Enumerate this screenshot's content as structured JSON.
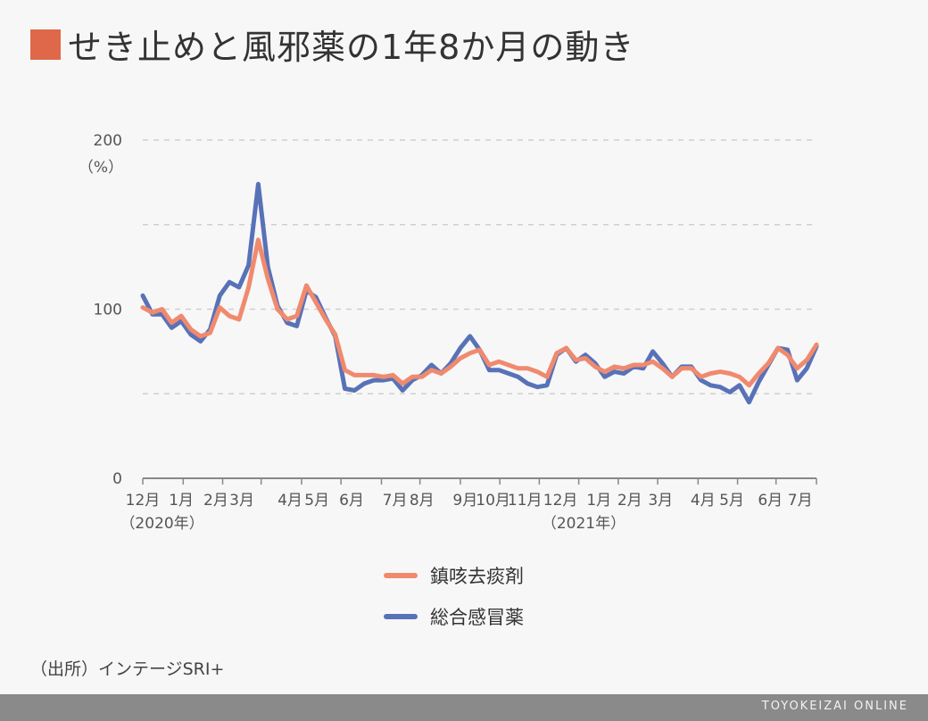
{
  "header": {
    "title": "せき止めと風邪薬の1年8か月の動き",
    "accent_color": "#e0684a"
  },
  "chart_data": {
    "type": "line",
    "yunit": "（%）",
    "ylim": [
      0,
      200
    ],
    "yticks": [
      0,
      100,
      200
    ],
    "ygrid": [
      50,
      100,
      150,
      200
    ],
    "grid": true,
    "x_count": 71,
    "month_labels": [
      {
        "label": "12月",
        "x": 0
      },
      {
        "label": "1月",
        "x": 4
      },
      {
        "label": "2月",
        "x": 7.6
      },
      {
        "label": "3月",
        "x": 10.3
      },
      {
        "label": "4月",
        "x": 15.3
      },
      {
        "label": "5月",
        "x": 18.1
      },
      {
        "label": "6月",
        "x": 21.7
      },
      {
        "label": "7月",
        "x": 26.2
      },
      {
        "label": "8月",
        "x": 29
      },
      {
        "label": "9月",
        "x": 33.5
      },
      {
        "label": "10月",
        "x": 36.4
      },
      {
        "label": "11月",
        "x": 39.7
      },
      {
        "label": "12月",
        "x": 43.4
      },
      {
        "label": "1月",
        "x": 47.4
      },
      {
        "label": "2月",
        "x": 50.6
      },
      {
        "label": "3月",
        "x": 53.8
      },
      {
        "label": "4月",
        "x": 58.2
      },
      {
        "label": "5月",
        "x": 61.2
      },
      {
        "label": "6月",
        "x": 65.2
      },
      {
        "label": "7月",
        "x": 68.3
      }
    ],
    "year_labels": [
      {
        "label": "（2020年）",
        "x": 2
      },
      {
        "label": "（2021年）",
        "x": 45.8
      }
    ],
    "ticks_x": [
      0,
      4.2,
      8.3,
      12.3,
      16.5,
      20.6,
      24.8,
      28.8,
      33,
      37.1,
      41.2,
      45.3,
      49.4,
      53.5,
      57.7,
      61.8,
      65.8,
      70
    ],
    "series": [
      {
        "name": "鎮咳去痰剤",
        "color": "#f08a6e",
        "values": [
          101,
          98,
          100,
          92,
          96,
          88,
          84,
          86,
          101,
          96,
          94,
          113,
          141,
          118,
          100,
          94,
          96,
          114,
          104,
          94,
          85,
          64,
          61,
          61,
          61,
          60,
          61,
          56,
          60,
          60,
          64,
          62,
          66,
          71,
          74,
          76,
          67,
          69,
          67,
          65,
          65,
          63,
          60,
          74,
          77,
          70,
          71,
          66,
          63,
          66,
          65,
          67,
          67,
          69,
          65,
          60,
          65,
          65,
          60,
          62,
          63,
          62,
          60,
          55,
          62,
          68,
          77,
          73,
          65,
          70,
          79
        ]
      },
      {
        "name": "総合感冒薬",
        "color": "#5872b8",
        "values": [
          108,
          97,
          97,
          89,
          93,
          85,
          81,
          88,
          108,
          116,
          113,
          126,
          174,
          125,
          102,
          92,
          90,
          111,
          107,
          95,
          84,
          53,
          52,
          56,
          58,
          58,
          59,
          52,
          58,
          61,
          67,
          62,
          68,
          77,
          84,
          76,
          64,
          64,
          62,
          60,
          56,
          54,
          55,
          73,
          77,
          69,
          73,
          68,
          60,
          63,
          62,
          66,
          65,
          75,
          68,
          60,
          66,
          66,
          58,
          55,
          54,
          51,
          55,
          45,
          57,
          67,
          77,
          76,
          58,
          65,
          78
        ]
      }
    ]
  },
  "legend": [
    {
      "label": "鎮咳去痰剤",
      "color": "#f08a6e"
    },
    {
      "label": "総合感冒薬",
      "color": "#5872b8"
    }
  ],
  "source": "（出所）インテージSRI+",
  "footer": {
    "brand": "TOYOKEIZAI ONLINE"
  }
}
